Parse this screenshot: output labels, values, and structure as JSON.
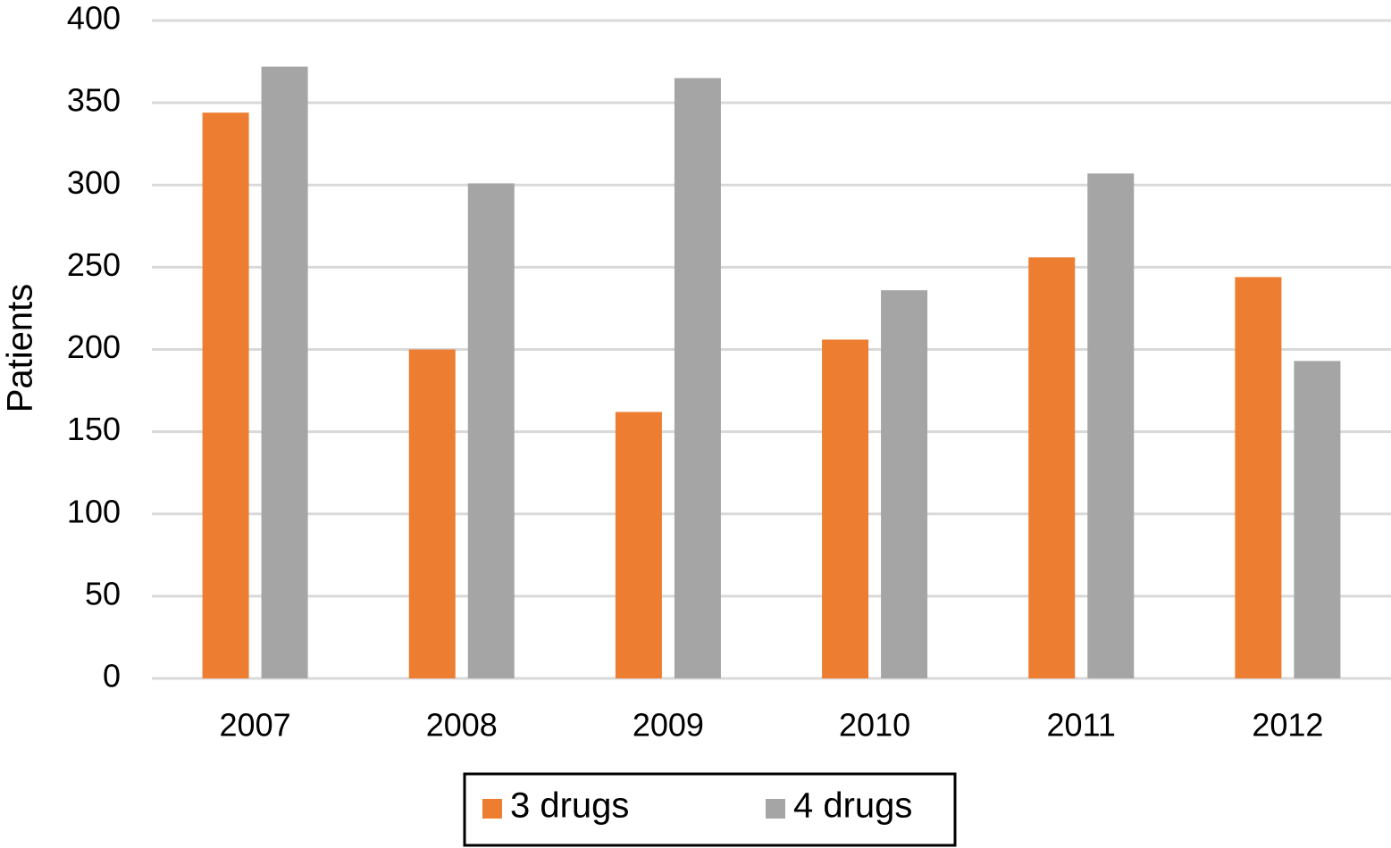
{
  "chart_data": {
    "type": "bar",
    "y_label": "Patients",
    "categories": [
      "2007",
      "2008",
      "2009",
      "2010",
      "2011",
      "2012"
    ],
    "series": [
      {
        "name": "3 drugs",
        "color": "#ed7d31",
        "values": [
          344,
          200,
          162,
          206,
          256,
          244
        ]
      },
      {
        "name": "4 drugs",
        "color": "#a5a5a5",
        "values": [
          372,
          301,
          365,
          236,
          307,
          193
        ]
      }
    ],
    "ylim": [
      0,
      400
    ],
    "yticks": [
      0,
      50,
      100,
      150,
      200,
      250,
      300,
      350,
      400
    ],
    "grid": true,
    "legend": "bottom"
  }
}
